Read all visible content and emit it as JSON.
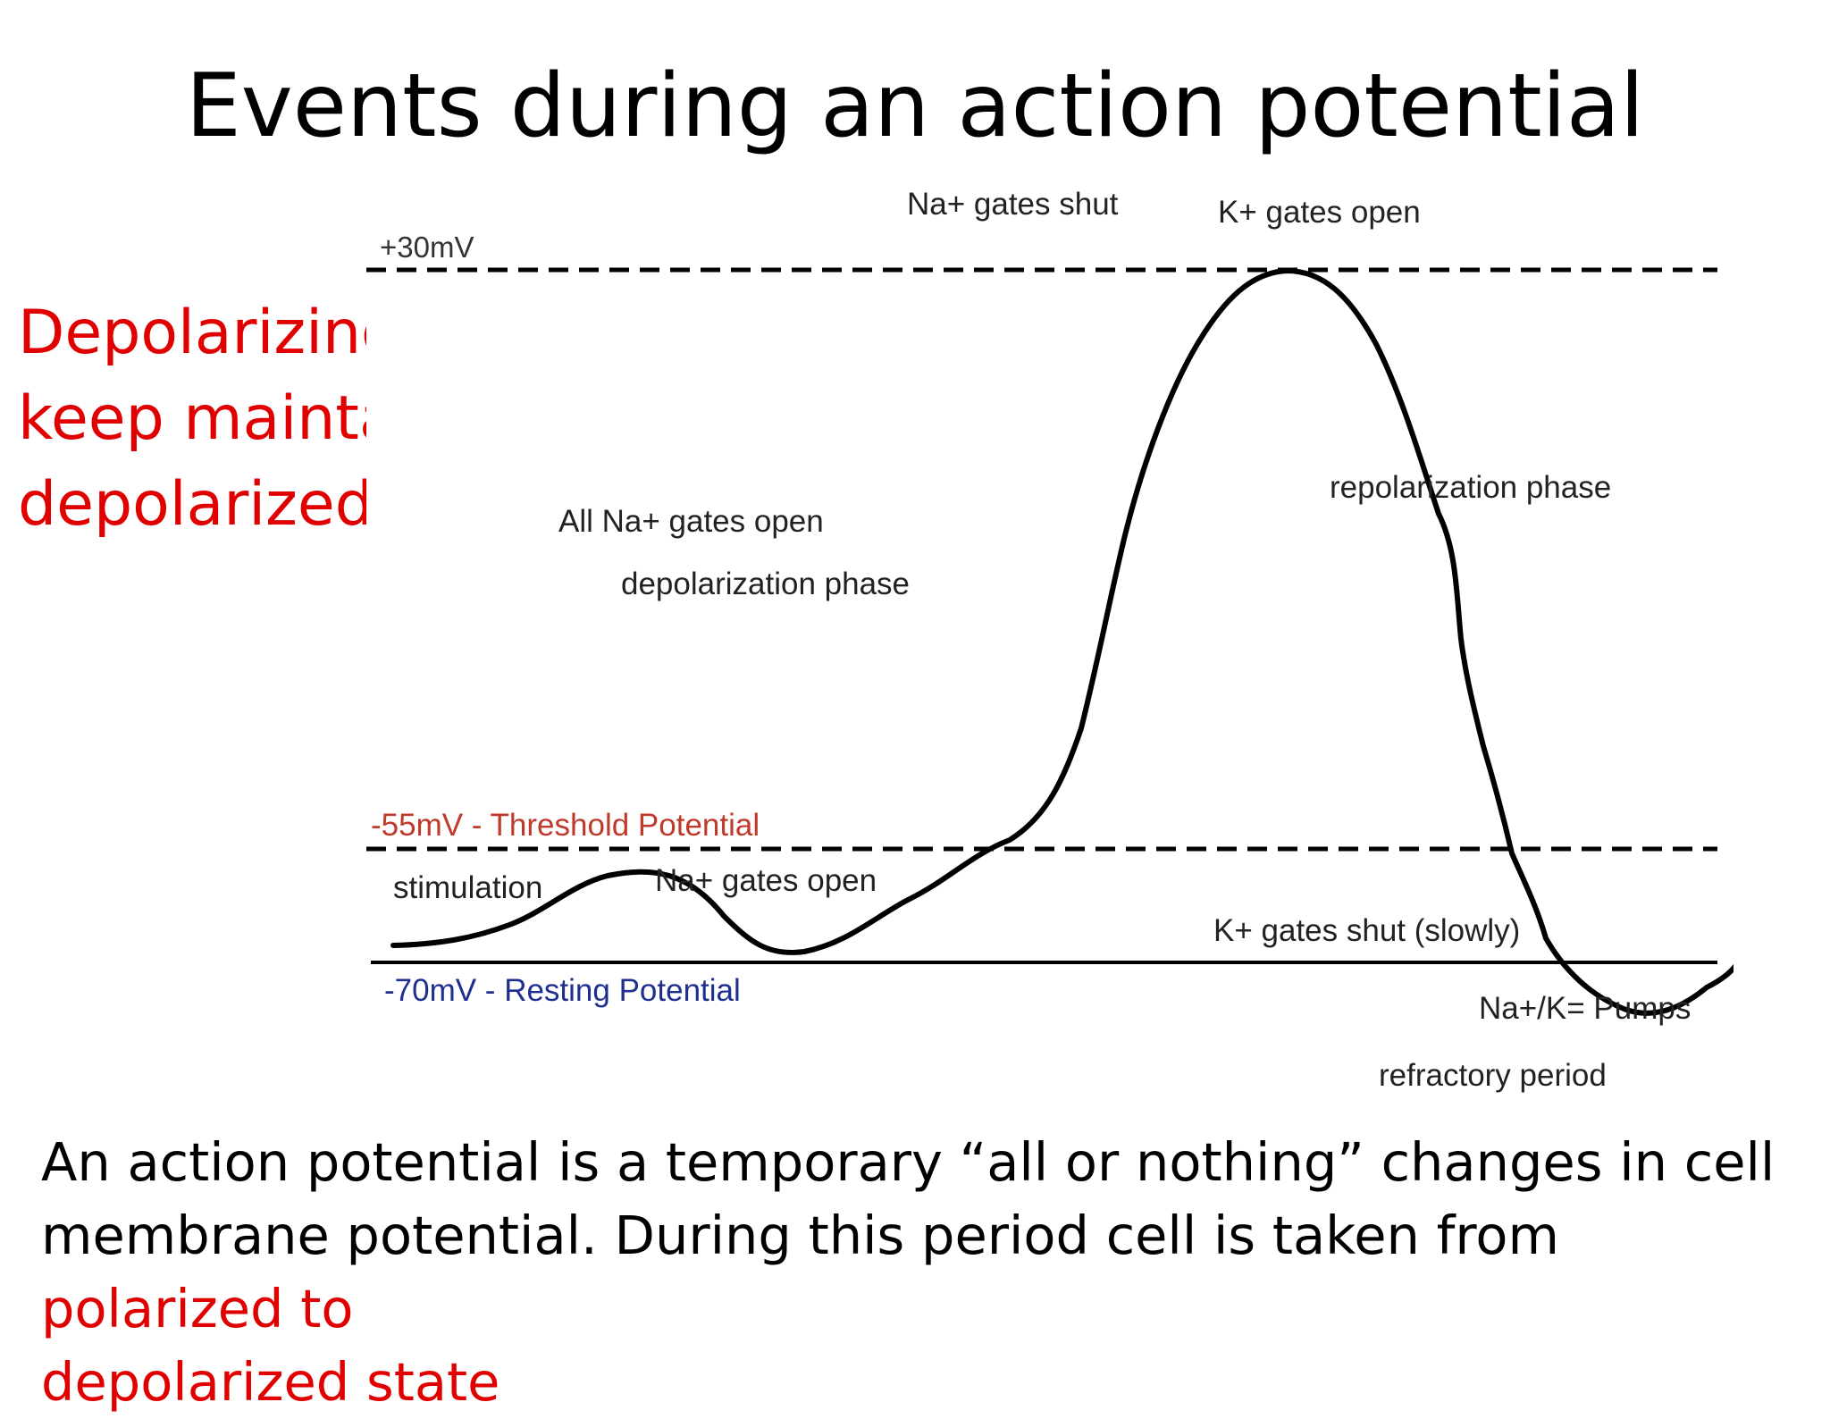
{
  "title": "Events during an action potential",
  "side_note": "Depolarizing blockers\nkeep maintaining\ndepolarized state",
  "diagram": {
    "labels": {
      "plus30": "+30mV",
      "na_shut": "Na+ gates shut",
      "k_open": "K+ gates open",
      "all_na_open": "All Na+ gates open",
      "depol_phase": "depolarization phase",
      "repol_phase": "repolarization phase",
      "threshold": "-55mV - Threshold Potential",
      "stimulation": "stimulation",
      "na_open": "Na+ gates open",
      "k_shut": "K+ gates shut (slowly)",
      "resting": "-70mV - Resting Potential",
      "pumps": "Na+/K= Pumps",
      "refractory": "refractory period"
    },
    "colors": {
      "curve": "#000000",
      "threshold_label": "#c0392b",
      "resting_label": "#1f2f8f"
    }
  },
  "caption": {
    "part1": "An action potential is a temporary “all or nothing” changes in cell membrane potential. During this period cell is taken from ",
    "highlight1": "polarized to",
    "highlight2": " depolarized state"
  }
}
